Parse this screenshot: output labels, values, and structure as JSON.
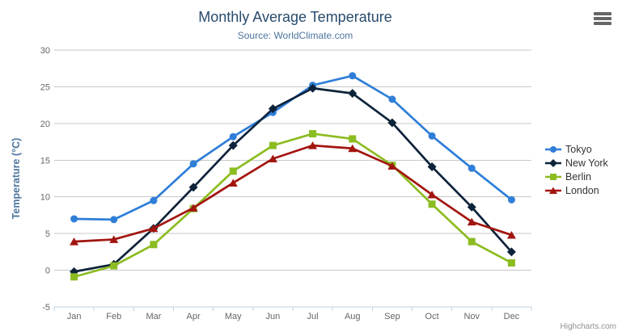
{
  "credits": "Highcharts.com",
  "menu_icon": "hamburger-menu-icon",
  "palette": {
    "title_color": "#274b6d",
    "subtitle_color": "#4d759e",
    "axis_title_color": "#4d759e",
    "axis_label_color": "#666666",
    "grid_color": "#c8c8c8",
    "axis_line_color": "#c0d0e0",
    "legend_text_color": "#333333",
    "credits_color": "#909090",
    "menu_color": "#666666",
    "background": "#ffffff"
  },
  "chart_data": {
    "type": "line",
    "title": "Monthly Average Temperature",
    "subtitle": "Source: WorldClimate.com",
    "xlabel": "",
    "ylabel": "Temperature (°C)",
    "categories": [
      "Jan",
      "Feb",
      "Mar",
      "Apr",
      "May",
      "Jun",
      "Jul",
      "Aug",
      "Sep",
      "Oct",
      "Nov",
      "Dec"
    ],
    "ylim": [
      -5,
      30
    ],
    "ytick_step": 5,
    "yticks": [
      30,
      25,
      20,
      15,
      10,
      5,
      0,
      -5
    ],
    "grid": true,
    "legend_position": "right",
    "series": [
      {
        "name": "Tokyo",
        "symbol": "circle",
        "color": "#2f7ed8",
        "values": [
          7.0,
          6.9,
          9.5,
          14.5,
          18.2,
          21.5,
          25.2,
          26.5,
          23.3,
          18.3,
          13.9,
          9.6
        ]
      },
      {
        "name": "New York",
        "symbol": "diamond",
        "color": "#0d233a",
        "values": [
          -0.2,
          0.8,
          5.7,
          11.3,
          17.0,
          22.0,
          24.8,
          24.1,
          20.1,
          14.1,
          8.6,
          2.5
        ]
      },
      {
        "name": "Berlin",
        "symbol": "square",
        "color": "#8bbc21",
        "values": [
          -0.9,
          0.6,
          3.5,
          8.4,
          13.5,
          17.0,
          18.6,
          17.9,
          14.3,
          9.0,
          3.9,
          1.0
        ]
      },
      {
        "name": "London",
        "symbol": "triangle",
        "color": "#a21510",
        "values": [
          3.9,
          4.2,
          5.7,
          8.5,
          11.9,
          15.2,
          17.0,
          16.6,
          14.2,
          10.3,
          6.6,
          4.8
        ]
      }
    ]
  }
}
